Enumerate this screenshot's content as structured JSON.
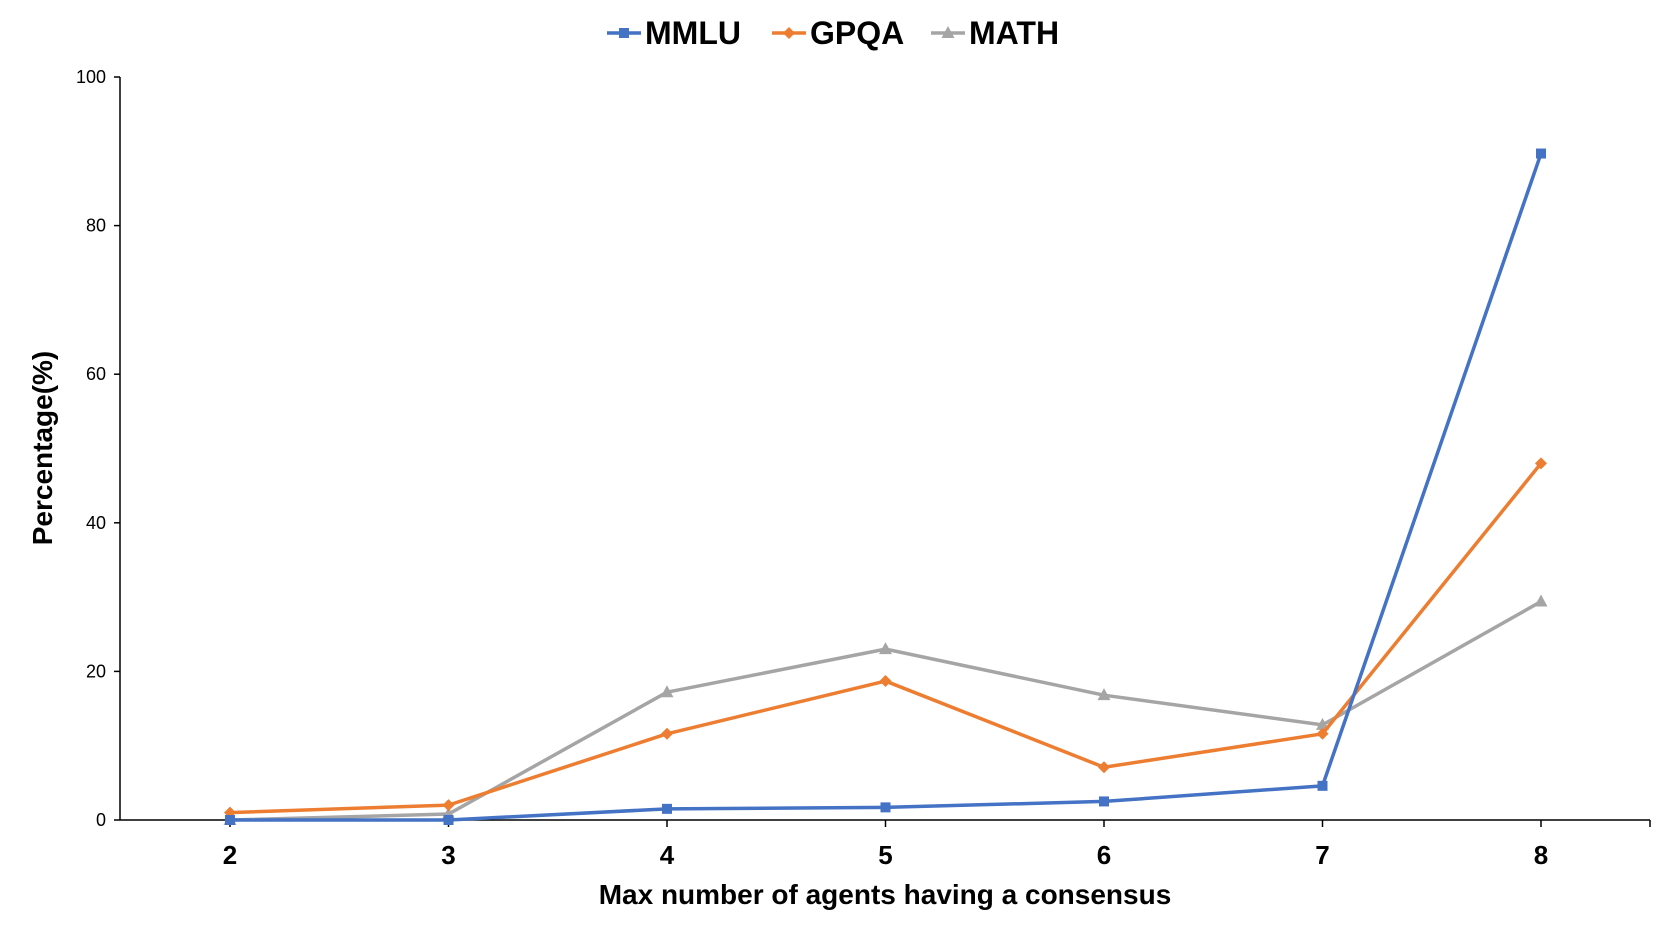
{
  "chart_data": {
    "type": "line",
    "categories": [
      "2",
      "3",
      "4",
      "5",
      "6",
      "7",
      "8"
    ],
    "x": [
      2,
      3,
      4,
      5,
      6,
      7,
      8
    ],
    "series": [
      {
        "name": "MMLU",
        "values": [
          0,
          0,
          1.5,
          1.7,
          2.5,
          4.6,
          89.7
        ],
        "color": "#4472C4",
        "marker": "square"
      },
      {
        "name": "GPQA",
        "values": [
          1.0,
          2.0,
          11.6,
          18.7,
          7.1,
          11.6,
          48.0
        ],
        "color": "#ED7D31",
        "marker": "diamond"
      },
      {
        "name": "MATH",
        "values": [
          0,
          0.8,
          17.2,
          23.0,
          16.8,
          12.8,
          29.4
        ],
        "color": "#A5A5A5",
        "marker": "triangle"
      }
    ],
    "xlabel": "Max number of agents having a consensus",
    "ylabel": "Percentage(%)",
    "ylim": [
      0,
      100
    ],
    "yticks": [
      0,
      20,
      40,
      60,
      80,
      100
    ],
    "grid": false,
    "legend_position": "top-center"
  }
}
